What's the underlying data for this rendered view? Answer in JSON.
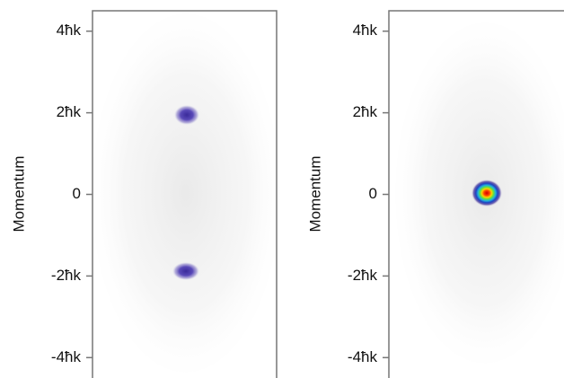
{
  "chart_data": [
    {
      "type": "image",
      "ylabel": "Momentum",
      "ylim": [
        -4.5,
        4.5
      ],
      "yticks": [
        {
          "value": 4,
          "label": "4ħk"
        },
        {
          "value": 2,
          "label": "2ħk"
        },
        0,
        {
          "value": -2,
          "label": "-2ħk"
        },
        {
          "value": -4,
          "label": "-4ħk"
        }
      ]
    },
    {
      "type": "image",
      "ylabel": "Momentum",
      "ylim": [
        -4.5,
        4.5
      ],
      "yticks": [
        {
          "value": 4,
          "label": "4ħk"
        },
        {
          "value": 2,
          "label": "2ħk"
        },
        0,
        {
          "value": -2,
          "label": "-2ħk"
        },
        {
          "value": -4,
          "label": "-4ħk"
        }
      ]
    }
  ]
}
